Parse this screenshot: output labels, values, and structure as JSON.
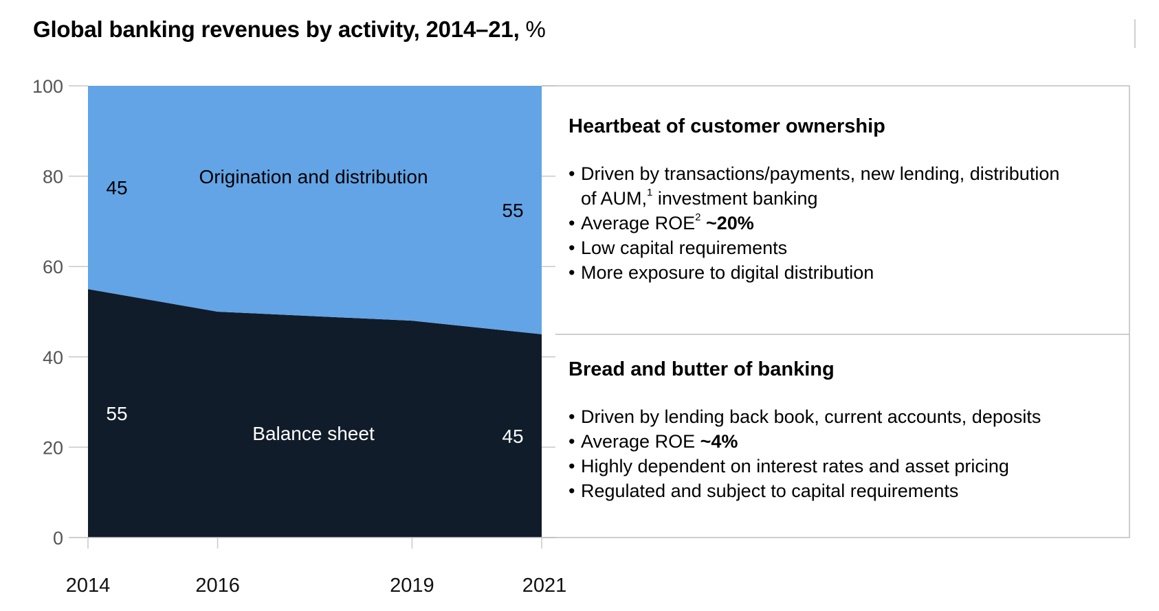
{
  "title": {
    "main": "Global banking revenues by activity, 2014–21,",
    "unit": "%"
  },
  "chart_data": {
    "type": "area",
    "stacked": true,
    "x": [
      2014,
      2016,
      2019,
      2021
    ],
    "xticklabels": [
      "2014",
      "2016",
      "2019",
      "2021"
    ],
    "ylim": [
      0,
      100
    ],
    "yticks": [
      0,
      20,
      40,
      60,
      80,
      100
    ],
    "grid": false,
    "series": [
      {
        "name": "Balance sheet",
        "values": [
          55,
          50,
          48,
          45
        ],
        "color": "#111c2a",
        "label_color": "#ffffff",
        "start_label": "55",
        "end_label": "45"
      },
      {
        "name": "Origination and distribution",
        "values": [
          45,
          50,
          52,
          55
        ],
        "color": "#62a4e6",
        "label_color": "#000000",
        "start_label": "45",
        "end_label": "55"
      }
    ]
  },
  "panels": [
    {
      "heading": "Heartbeat of customer ownership",
      "bullets": [
        {
          "text": "Driven by transactions/payments, new lending, distribution",
          "cont": "of AUM,",
          "sup": "1",
          "after": " investment banking"
        },
        {
          "text": "Average ROE",
          "sup": "2",
          "bold": " ~20%"
        },
        {
          "text": "Low capital requirements"
        },
        {
          "text": "More exposure to digital distribution"
        }
      ]
    },
    {
      "heading": "Bread and butter of banking",
      "bullets": [
        {
          "text": "Driven by lending back book, current accounts, deposits"
        },
        {
          "text": "Average ROE ",
          "bold": "~4%"
        },
        {
          "text": "Highly dependent on interest rates and asset pricing"
        },
        {
          "text": "Regulated and subject to capital requirements"
        }
      ]
    }
  ],
  "colors": {
    "axis": "#c8c8c8",
    "tick_label": "#555555",
    "panel_border": "#bdbdbd"
  }
}
